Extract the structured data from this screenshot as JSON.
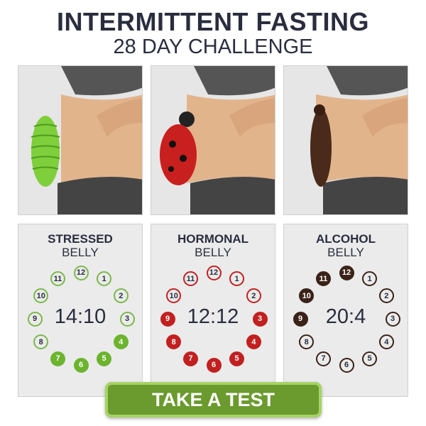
{
  "header": {
    "title": "INTERMITTENT FASTING",
    "subtitle": "28 DAY CHALLENGE"
  },
  "cards": [
    {
      "title": "STRESSED",
      "subtitle": "BELLY",
      "ratio": "14:10",
      "color": "#6cb42e",
      "filled": [
        4,
        5,
        6,
        7
      ],
      "illustration": "caterpillar"
    },
    {
      "title": "HORMONAL",
      "subtitle": "BELLY",
      "ratio": "12:12",
      "color": "#c22020",
      "filled": [
        3,
        4,
        5,
        6,
        7,
        8,
        9
      ],
      "illustration": "ladybug"
    },
    {
      "title": "ALCOHOL",
      "subtitle": "BELLY",
      "ratio": "20:4",
      "color": "#3b2218",
      "filled": [
        9,
        10,
        11,
        12
      ],
      "illustration": "cockroach"
    }
  ],
  "cta": {
    "label": "TAKE A TEST",
    "color": "#6b9a2e"
  }
}
